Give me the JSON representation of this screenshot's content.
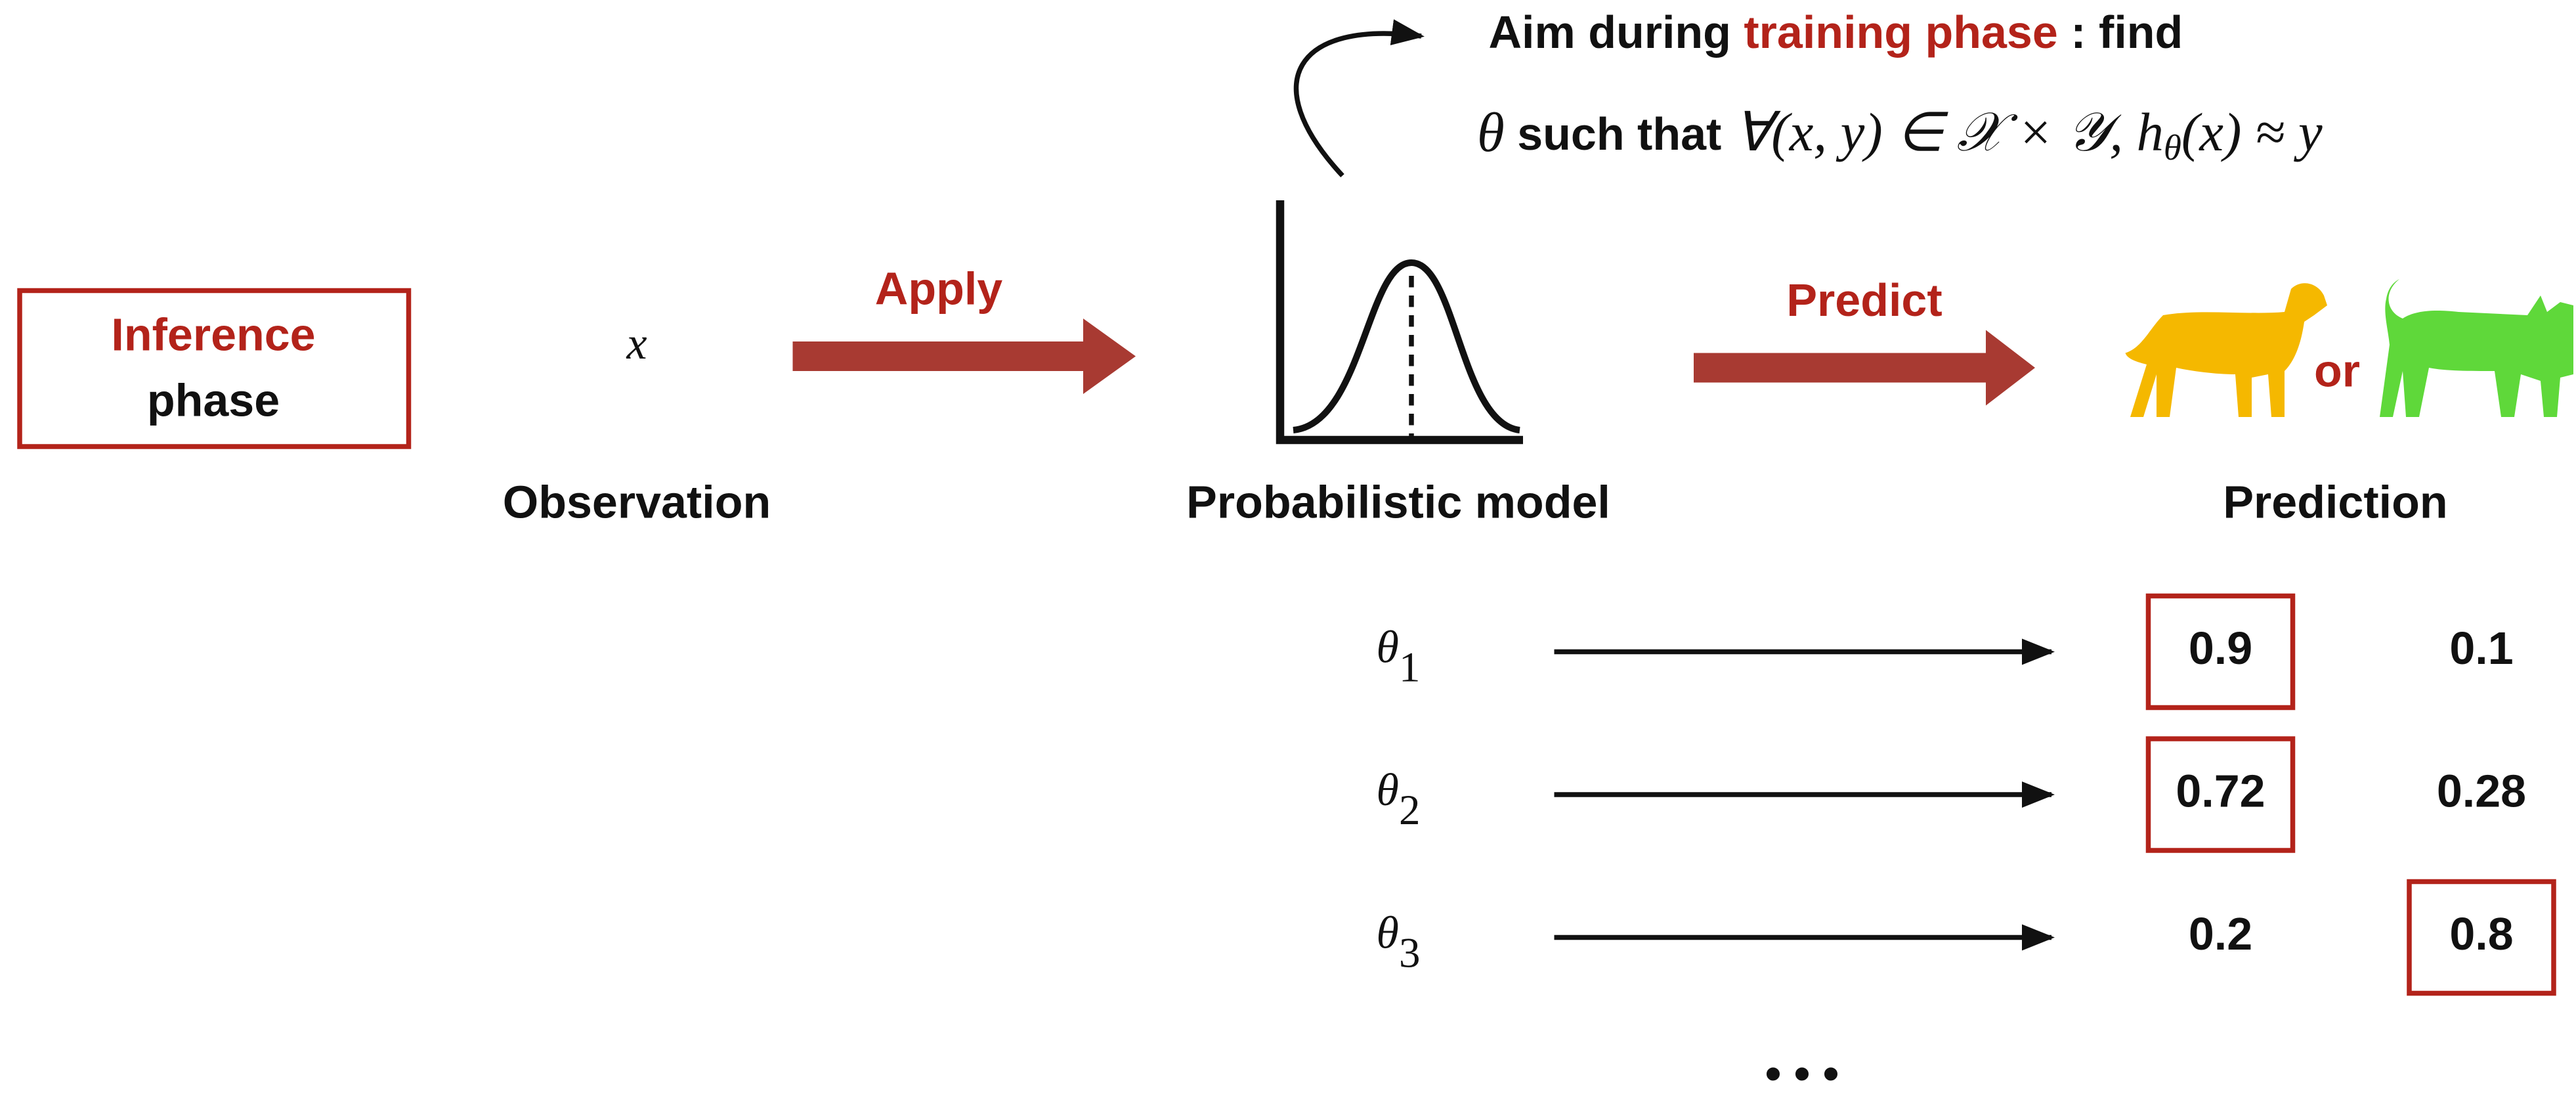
{
  "inference": {
    "title": "Inference",
    "subtitle": "phase"
  },
  "observation": {
    "symbol": "x",
    "label": "Observation"
  },
  "apply": "Apply",
  "model": {
    "label": "Probabilistic model"
  },
  "predict": "Predict",
  "prediction": {
    "connector": "or",
    "label": "Prediction"
  },
  "aim": {
    "prefix": "Aim during ",
    "highlight": "training phase",
    "suffix": " : find",
    "formula": {
      "theta": "θ",
      "text": " such that ",
      "math": "∀(x, y) ∈ 𝒳 × 𝒴, h",
      "sub": "θ",
      "tail": "(x) ≈ y"
    }
  },
  "rows": [
    {
      "symbol": "θ",
      "sub": "1",
      "values": [
        0.9,
        0.1
      ],
      "boxed": 0
    },
    {
      "symbol": "θ",
      "sub": "2",
      "values": [
        0.72,
        0.28
      ],
      "boxed": 0
    },
    {
      "symbol": "θ",
      "sub": "3",
      "values": [
        0.2,
        0.8
      ],
      "boxed": 1
    }
  ],
  "ellipsis": "• • •"
}
